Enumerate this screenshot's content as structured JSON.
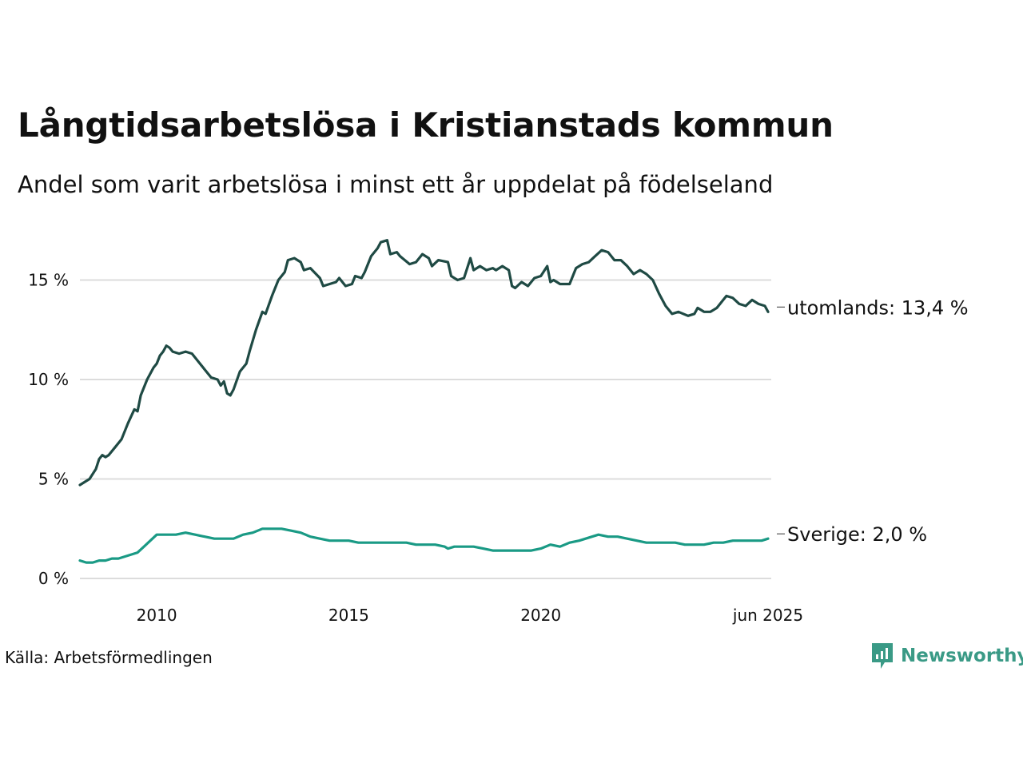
{
  "title": "Långtidsarbetslösa i Kristianstads kommun",
  "subtitle": "Andel som varit arbetslösa i minst ett år uppdelat på födelseland",
  "source": "Källa: Arbetsförmedlingen",
  "logo": {
    "text": "Newsworthy",
    "icon": "newsworthy-chart-icon",
    "color": "#3a9a86"
  },
  "chart_data": {
    "type": "line",
    "x_axis": {
      "ticks": [
        "2010",
        "2015",
        "2020",
        "jun 2025"
      ],
      "range": [
        "2008-01",
        "2025-06"
      ]
    },
    "y_axis": {
      "ticks": [
        "0 %",
        "5 %",
        "10 %",
        "15 %"
      ],
      "ylim": [
        0,
        17.5
      ]
    },
    "grid": true,
    "series": [
      {
        "name": "utomlands",
        "end_label": "utomlands: 13,4 %",
        "color": "#1f4a44",
        "points": [
          [
            "2008-01",
            4.7
          ],
          [
            "2008-02",
            4.8
          ],
          [
            "2008-04",
            5.0
          ],
          [
            "2008-06",
            5.5
          ],
          [
            "2008-07",
            6.0
          ],
          [
            "2008-08",
            6.2
          ],
          [
            "2008-09",
            6.1
          ],
          [
            "2008-10",
            6.2
          ],
          [
            "2008-12",
            6.6
          ],
          [
            "2009-02",
            7.0
          ],
          [
            "2009-04",
            7.8
          ],
          [
            "2009-06",
            8.5
          ],
          [
            "2009-07",
            8.4
          ],
          [
            "2009-08",
            9.2
          ],
          [
            "2009-10",
            10.0
          ],
          [
            "2009-12",
            10.6
          ],
          [
            "2010-01",
            10.8
          ],
          [
            "2010-02",
            11.2
          ],
          [
            "2010-03",
            11.4
          ],
          [
            "2010-04",
            11.7
          ],
          [
            "2010-05",
            11.6
          ],
          [
            "2010-06",
            11.4
          ],
          [
            "2010-08",
            11.3
          ],
          [
            "2010-10",
            11.4
          ],
          [
            "2010-12",
            11.3
          ],
          [
            "2011-02",
            10.9
          ],
          [
            "2011-04",
            10.5
          ],
          [
            "2011-06",
            10.1
          ],
          [
            "2011-08",
            10.0
          ],
          [
            "2011-09",
            9.7
          ],
          [
            "2011-10",
            9.9
          ],
          [
            "2011-11",
            9.3
          ],
          [
            "2011-12",
            9.2
          ],
          [
            "2012-01",
            9.5
          ],
          [
            "2012-03",
            10.4
          ],
          [
            "2012-05",
            10.8
          ],
          [
            "2012-06",
            11.4
          ],
          [
            "2012-08",
            12.5
          ],
          [
            "2012-10",
            13.4
          ],
          [
            "2012-11",
            13.3
          ],
          [
            "2013-01",
            14.2
          ],
          [
            "2013-03",
            15.0
          ],
          [
            "2013-05",
            15.4
          ],
          [
            "2013-06",
            16.0
          ],
          [
            "2013-08",
            16.1
          ],
          [
            "2013-10",
            15.9
          ],
          [
            "2013-11",
            15.5
          ],
          [
            "2014-01",
            15.6
          ],
          [
            "2014-04",
            15.1
          ],
          [
            "2014-05",
            14.7
          ],
          [
            "2014-07",
            14.8
          ],
          [
            "2014-09",
            14.9
          ],
          [
            "2014-10",
            15.1
          ],
          [
            "2014-12",
            14.7
          ],
          [
            "2015-02",
            14.8
          ],
          [
            "2015-03",
            15.2
          ],
          [
            "2015-05",
            15.1
          ],
          [
            "2015-06",
            15.4
          ],
          [
            "2015-08",
            16.2
          ],
          [
            "2015-10",
            16.6
          ],
          [
            "2015-11",
            16.9
          ],
          [
            "2016-01",
            17.0
          ],
          [
            "2016-02",
            16.3
          ],
          [
            "2016-04",
            16.4
          ],
          [
            "2016-05",
            16.2
          ],
          [
            "2016-08",
            15.8
          ],
          [
            "2016-10",
            15.9
          ],
          [
            "2016-12",
            16.3
          ],
          [
            "2017-02",
            16.1
          ],
          [
            "2017-03",
            15.7
          ],
          [
            "2017-05",
            16.0
          ],
          [
            "2017-08",
            15.9
          ],
          [
            "2017-09",
            15.2
          ],
          [
            "2017-11",
            15.0
          ],
          [
            "2018-01",
            15.1
          ],
          [
            "2018-03",
            16.1
          ],
          [
            "2018-04",
            15.5
          ],
          [
            "2018-06",
            15.7
          ],
          [
            "2018-08",
            15.5
          ],
          [
            "2018-10",
            15.6
          ],
          [
            "2018-11",
            15.5
          ],
          [
            "2019-01",
            15.7
          ],
          [
            "2019-03",
            15.5
          ],
          [
            "2019-04",
            14.7
          ],
          [
            "2019-05",
            14.6
          ],
          [
            "2019-07",
            14.9
          ],
          [
            "2019-09",
            14.7
          ],
          [
            "2019-11",
            15.1
          ],
          [
            "2020-01",
            15.2
          ],
          [
            "2020-03",
            15.7
          ],
          [
            "2020-04",
            14.9
          ],
          [
            "2020-05",
            15.0
          ],
          [
            "2020-07",
            14.8
          ],
          [
            "2020-10",
            14.8
          ],
          [
            "2020-12",
            15.6
          ],
          [
            "2021-02",
            15.8
          ],
          [
            "2021-04",
            15.9
          ],
          [
            "2021-06",
            16.2
          ],
          [
            "2021-08",
            16.5
          ],
          [
            "2021-10",
            16.4
          ],
          [
            "2021-12",
            16.0
          ],
          [
            "2022-02",
            16.0
          ],
          [
            "2022-04",
            15.7
          ],
          [
            "2022-06",
            15.3
          ],
          [
            "2022-08",
            15.5
          ],
          [
            "2022-10",
            15.3
          ],
          [
            "2022-12",
            15.0
          ],
          [
            "2023-02",
            14.3
          ],
          [
            "2023-04",
            13.7
          ],
          [
            "2023-06",
            13.3
          ],
          [
            "2023-08",
            13.4
          ],
          [
            "2023-11",
            13.2
          ],
          [
            "2024-01",
            13.3
          ],
          [
            "2024-02",
            13.6
          ],
          [
            "2024-04",
            13.4
          ],
          [
            "2024-06",
            13.4
          ],
          [
            "2024-08",
            13.6
          ],
          [
            "2024-10",
            14.0
          ],
          [
            "2024-11",
            14.2
          ],
          [
            "2025-01",
            14.1
          ],
          [
            "2025-03",
            13.8
          ],
          [
            "2025-05",
            13.7
          ],
          [
            "2025-07",
            14.0
          ],
          [
            "2025-09",
            13.8
          ],
          [
            "2025-11",
            13.7
          ],
          [
            "2025-12",
            13.4
          ]
        ]
      },
      {
        "name": "Sverige",
        "end_label": "Sverige:  2,0 %",
        "color": "#1a9a85",
        "points": [
          [
            "2008-01",
            0.9
          ],
          [
            "2008-03",
            0.8
          ],
          [
            "2008-05",
            0.8
          ],
          [
            "2008-07",
            0.9
          ],
          [
            "2008-09",
            0.9
          ],
          [
            "2008-11",
            1.0
          ],
          [
            "2009-01",
            1.0
          ],
          [
            "2009-03",
            1.1
          ],
          [
            "2009-05",
            1.2
          ],
          [
            "2009-07",
            1.3
          ],
          [
            "2009-09",
            1.6
          ],
          [
            "2009-11",
            1.9
          ],
          [
            "2010-01",
            2.2
          ],
          [
            "2010-04",
            2.2
          ],
          [
            "2010-07",
            2.2
          ],
          [
            "2010-10",
            2.3
          ],
          [
            "2011-01",
            2.2
          ],
          [
            "2011-04",
            2.1
          ],
          [
            "2011-07",
            2.0
          ],
          [
            "2011-10",
            2.0
          ],
          [
            "2012-01",
            2.0
          ],
          [
            "2012-04",
            2.2
          ],
          [
            "2012-07",
            2.3
          ],
          [
            "2012-10",
            2.5
          ],
          [
            "2013-01",
            2.5
          ],
          [
            "2013-04",
            2.5
          ],
          [
            "2013-07",
            2.4
          ],
          [
            "2013-10",
            2.3
          ],
          [
            "2014-01",
            2.1
          ],
          [
            "2014-04",
            2.0
          ],
          [
            "2014-07",
            1.9
          ],
          [
            "2014-10",
            1.9
          ],
          [
            "2015-01",
            1.9
          ],
          [
            "2015-04",
            1.8
          ],
          [
            "2015-07",
            1.8
          ],
          [
            "2015-10",
            1.8
          ],
          [
            "2016-01",
            1.8
          ],
          [
            "2016-04",
            1.8
          ],
          [
            "2016-07",
            1.8
          ],
          [
            "2016-10",
            1.7
          ],
          [
            "2017-01",
            1.7
          ],
          [
            "2017-04",
            1.7
          ],
          [
            "2017-07",
            1.6
          ],
          [
            "2017-08",
            1.5
          ],
          [
            "2017-10",
            1.6
          ],
          [
            "2018-01",
            1.6
          ],
          [
            "2018-04",
            1.6
          ],
          [
            "2018-07",
            1.5
          ],
          [
            "2018-10",
            1.4
          ],
          [
            "2019-01",
            1.4
          ],
          [
            "2019-04",
            1.4
          ],
          [
            "2019-07",
            1.4
          ],
          [
            "2019-10",
            1.4
          ],
          [
            "2020-01",
            1.5
          ],
          [
            "2020-04",
            1.7
          ],
          [
            "2020-07",
            1.6
          ],
          [
            "2020-10",
            1.8
          ],
          [
            "2021-01",
            1.9
          ],
          [
            "2021-03",
            2.0
          ],
          [
            "2021-05",
            2.1
          ],
          [
            "2021-07",
            2.2
          ],
          [
            "2021-10",
            2.1
          ],
          [
            "2022-01",
            2.1
          ],
          [
            "2022-04",
            2.0
          ],
          [
            "2022-07",
            1.9
          ],
          [
            "2022-10",
            1.8
          ],
          [
            "2023-01",
            1.8
          ],
          [
            "2023-04",
            1.8
          ],
          [
            "2023-07",
            1.8
          ],
          [
            "2023-10",
            1.7
          ],
          [
            "2024-01",
            1.7
          ],
          [
            "2024-04",
            1.7
          ],
          [
            "2024-07",
            1.8
          ],
          [
            "2024-10",
            1.8
          ],
          [
            "2025-01",
            1.9
          ],
          [
            "2025-04",
            1.9
          ],
          [
            "2025-07",
            1.9
          ],
          [
            "2025-10",
            1.9
          ],
          [
            "2025-12",
            2.0
          ]
        ]
      }
    ]
  }
}
